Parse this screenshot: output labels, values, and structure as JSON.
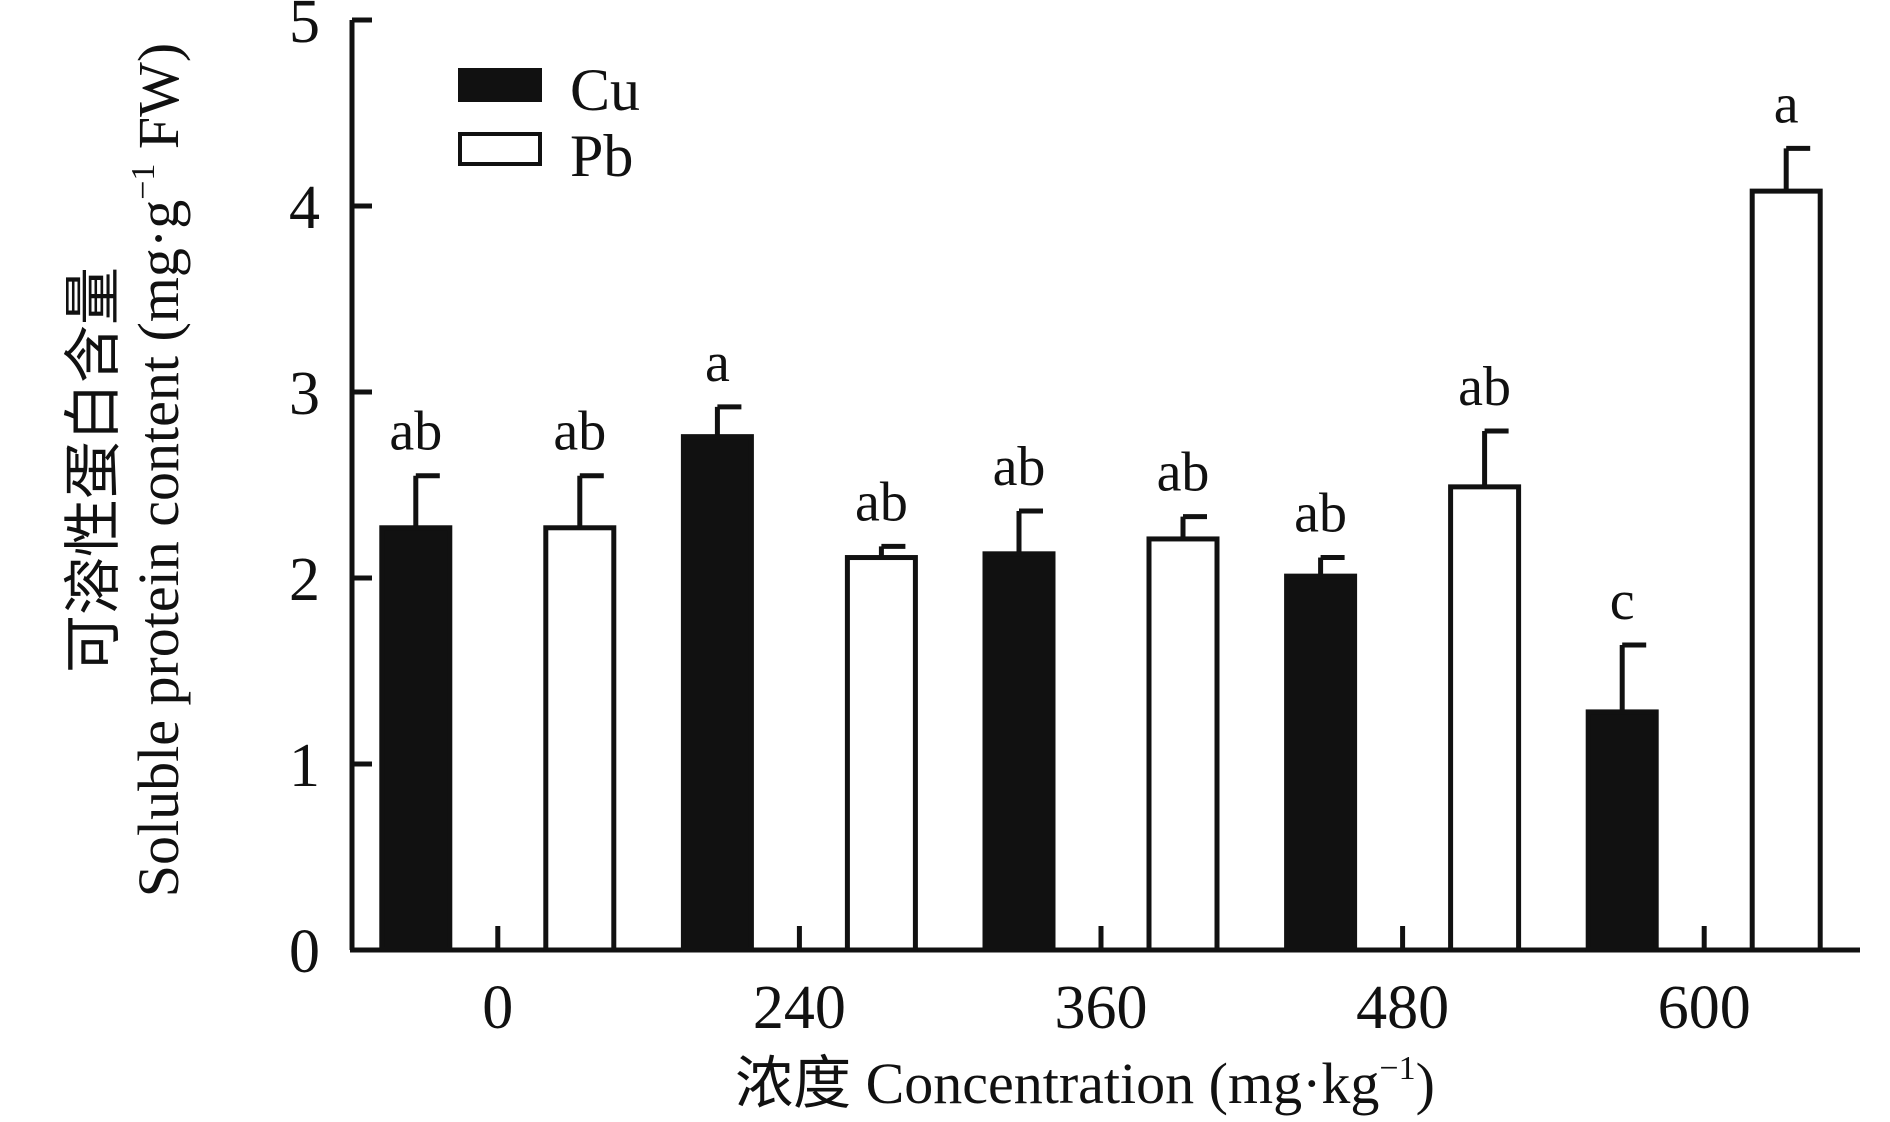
{
  "chart_data": {
    "type": "bar",
    "categories": [
      "0",
      "240",
      "360",
      "480",
      "600"
    ],
    "series": [
      {
        "name": "Cu",
        "values": [
          2.27,
          2.76,
          2.13,
          2.01,
          1.28
        ],
        "errors": [
          0.28,
          0.16,
          0.23,
          0.1,
          0.36
        ],
        "labels": [
          "ab",
          "a",
          "ab",
          "ab",
          "c"
        ]
      },
      {
        "name": "Pb",
        "values": [
          2.27,
          2.11,
          2.21,
          2.49,
          4.08
        ],
        "errors": [
          0.28,
          0.06,
          0.12,
          0.3,
          0.23
        ],
        "labels": [
          "ab",
          "ab",
          "ab",
          "ab",
          "a"
        ]
      }
    ],
    "xlabel": {
      "text": "浓度 Concentration (mg·kg",
      "sup": "−1",
      "tail": ")"
    },
    "ylabel": {
      "line1": "可溶性蛋白含量",
      "line2": "Soluble protein content (mg·g",
      "sup": "−1",
      "tail": " FW)"
    },
    "ylim": [
      0,
      5
    ],
    "yticks": [
      0,
      1,
      2,
      3,
      4,
      5
    ],
    "legend_position": "top-left",
    "grid": false,
    "colors": {
      "Cu": "#111111",
      "Pb": "#ffffff",
      "axis": "#111111"
    }
  }
}
